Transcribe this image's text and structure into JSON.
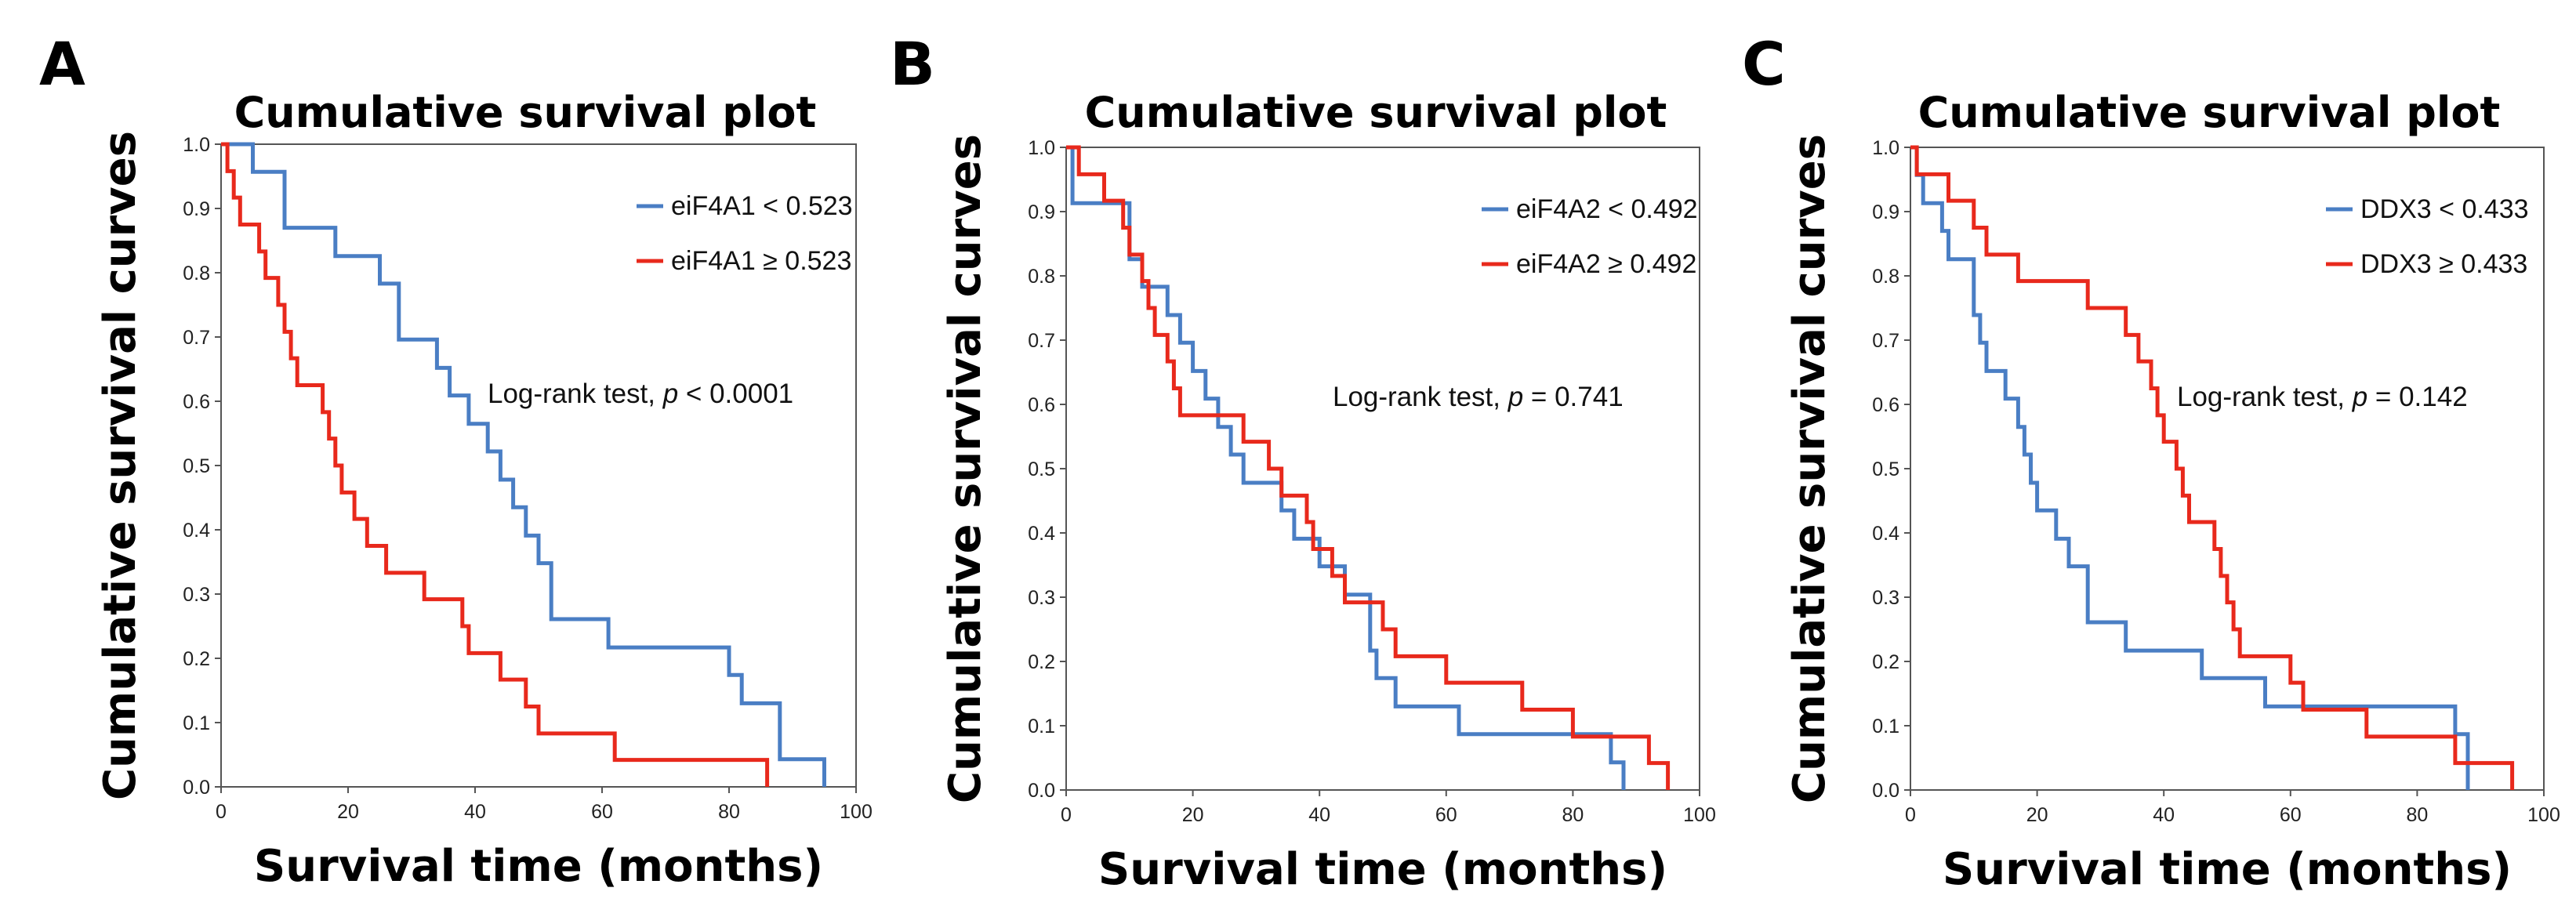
{
  "chart_data": [
    {
      "type": "line",
      "panel": "A",
      "title": "Cumulative survival plot",
      "xlabel": "Survival time (months)",
      "ylabel": "Cumulative survival curves",
      "xlim": [
        0,
        100
      ],
      "ylim": [
        0,
        1
      ],
      "xticks": [
        "0",
        "20",
        "40",
        "60",
        "80",
        "100"
      ],
      "yticks": [
        "0.0",
        "0.1",
        "0.2",
        "0.3",
        "0.4",
        "0.5",
        "0.6",
        "0.7",
        "0.8",
        "0.9",
        "1.0"
      ],
      "grid": false,
      "legend_position": "top-right",
      "annotation": {
        "prefix": "Log-rank test, ",
        "italic": "p",
        "suffix": " < 0.0001"
      },
      "series": [
        {
          "name": "eiF4A1 < 0.523",
          "color": "#4a7ec4",
          "steps": [
            [
              0,
              1.0
            ],
            [
              5,
              0.957
            ],
            [
              10,
              0.87
            ],
            [
              18,
              0.826
            ],
            [
              25,
              0.783
            ],
            [
              28,
              0.696
            ],
            [
              34,
              0.652
            ],
            [
              36,
              0.609
            ],
            [
              39,
              0.565
            ],
            [
              42,
              0.522
            ],
            [
              44,
              0.478
            ],
            [
              46,
              0.435
            ],
            [
              48,
              0.391
            ],
            [
              50,
              0.348
            ],
            [
              52,
              0.261
            ],
            [
              61,
              0.217
            ],
            [
              72,
              0.217
            ],
            [
              80,
              0.174
            ],
            [
              82,
              0.13
            ],
            [
              88,
              0.043
            ],
            [
              95,
              0.0
            ]
          ]
        },
        {
          "name": "eiF4A1 ≥ 0.523",
          "color": "#e8291c",
          "steps": [
            [
              0,
              1.0
            ],
            [
              1,
              0.958
            ],
            [
              2,
              0.917
            ],
            [
              3,
              0.875
            ],
            [
              6,
              0.833
            ],
            [
              7,
              0.792
            ],
            [
              9,
              0.75
            ],
            [
              10,
              0.708
            ],
            [
              11,
              0.667
            ],
            [
              12,
              0.625
            ],
            [
              16,
              0.583
            ],
            [
              17,
              0.542
            ],
            [
              18,
              0.5
            ],
            [
              19,
              0.458
            ],
            [
              21,
              0.417
            ],
            [
              23,
              0.375
            ],
            [
              26,
              0.333
            ],
            [
              32,
              0.292
            ],
            [
              38,
              0.25
            ],
            [
              39,
              0.208
            ],
            [
              44,
              0.167
            ],
            [
              48,
              0.125
            ],
            [
              50,
              0.083
            ],
            [
              62,
              0.042
            ],
            [
              86,
              0.0
            ]
          ]
        }
      ]
    },
    {
      "type": "line",
      "panel": "B",
      "title": "Cumulative survival plot",
      "xlabel": "Survival time (months)",
      "ylabel": "Cumulative survival curves",
      "xlim": [
        0,
        100
      ],
      "ylim": [
        0,
        1
      ],
      "xticks": [
        "0",
        "20",
        "40",
        "60",
        "80",
        "100"
      ],
      "yticks": [
        "0.0",
        "0.1",
        "0.2",
        "0.3",
        "0.4",
        "0.5",
        "0.6",
        "0.7",
        "0.8",
        "0.9",
        "1.0"
      ],
      "grid": false,
      "legend_position": "top-right",
      "annotation": {
        "prefix": "Log-rank test, ",
        "italic": "p",
        "suffix": " = 0.741"
      },
      "series": [
        {
          "name": "eiF4A2 < 0.492",
          "color": "#4a7ec4",
          "steps": [
            [
              0,
              1.0
            ],
            [
              1,
              0.913
            ],
            [
              10,
              0.826
            ],
            [
              12,
              0.783
            ],
            [
              16,
              0.739
            ],
            [
              18,
              0.696
            ],
            [
              20,
              0.652
            ],
            [
              22,
              0.609
            ],
            [
              24,
              0.565
            ],
            [
              26,
              0.522
            ],
            [
              28,
              0.478
            ],
            [
              34,
              0.435
            ],
            [
              36,
              0.391
            ],
            [
              40,
              0.348
            ],
            [
              44,
              0.304
            ],
            [
              48,
              0.217
            ],
            [
              49,
              0.174
            ],
            [
              52,
              0.13
            ],
            [
              62,
              0.087
            ],
            [
              86,
              0.043
            ],
            [
              88,
              0.0
            ]
          ]
        },
        {
          "name": "eiF4A2 ≥ 0.492",
          "color": "#e8291c",
          "steps": [
            [
              0,
              1.0
            ],
            [
              2,
              0.958
            ],
            [
              6,
              0.917
            ],
            [
              9,
              0.875
            ],
            [
              10,
              0.833
            ],
            [
              12,
              0.792
            ],
            [
              13,
              0.75
            ],
            [
              14,
              0.708
            ],
            [
              16,
              0.667
            ],
            [
              17,
              0.625
            ],
            [
              18,
              0.583
            ],
            [
              28,
              0.542
            ],
            [
              32,
              0.5
            ],
            [
              34,
              0.458
            ],
            [
              38,
              0.417
            ],
            [
              39,
              0.375
            ],
            [
              42,
              0.333
            ],
            [
              44,
              0.292
            ],
            [
              50,
              0.25
            ],
            [
              52,
              0.208
            ],
            [
              60,
              0.167
            ],
            [
              72,
              0.125
            ],
            [
              80,
              0.083
            ],
            [
              92,
              0.042
            ],
            [
              95,
              0.0
            ]
          ]
        }
      ]
    },
    {
      "type": "line",
      "panel": "C",
      "title": "Cumulative survival plot",
      "xlabel": "Survival time (months)",
      "ylabel": "Cumulative survival curves",
      "xlim": [
        0,
        100
      ],
      "ylim": [
        0,
        1
      ],
      "xticks": [
        "0",
        "20",
        "40",
        "60",
        "80",
        "100"
      ],
      "yticks": [
        "0.0",
        "0.1",
        "0.2",
        "0.3",
        "0.4",
        "0.5",
        "0.6",
        "0.7",
        "0.8",
        "0.9",
        "1.0"
      ],
      "grid": false,
      "legend_position": "top-right",
      "annotation": {
        "prefix": "Log-rank test, ",
        "italic": "p",
        "suffix": " = 0.142"
      },
      "series": [
        {
          "name": "DDX3 < 0.433",
          "color": "#4a7ec4",
          "steps": [
            [
              0,
              1.0
            ],
            [
              1,
              0.957
            ],
            [
              2,
              0.913
            ],
            [
              5,
              0.87
            ],
            [
              6,
              0.826
            ],
            [
              10,
              0.739
            ],
            [
              11,
              0.696
            ],
            [
              12,
              0.652
            ],
            [
              15,
              0.609
            ],
            [
              17,
              0.565
            ],
            [
              18,
              0.522
            ],
            [
              19,
              0.478
            ],
            [
              20,
              0.435
            ],
            [
              23,
              0.391
            ],
            [
              25,
              0.348
            ],
            [
              28,
              0.261
            ],
            [
              34,
              0.217
            ],
            [
              46,
              0.174
            ],
            [
              56,
              0.13
            ],
            [
              86,
              0.087
            ],
            [
              88,
              0.0
            ]
          ]
        },
        {
          "name": "DDX3 ≥ 0.433",
          "color": "#e8291c",
          "steps": [
            [
              0,
              1.0
            ],
            [
              1,
              0.958
            ],
            [
              6,
              0.917
            ],
            [
              10,
              0.875
            ],
            [
              12,
              0.833
            ],
            [
              17,
              0.792
            ],
            [
              28,
              0.75
            ],
            [
              34,
              0.708
            ],
            [
              36,
              0.667
            ],
            [
              38,
              0.625
            ],
            [
              39,
              0.583
            ],
            [
              40,
              0.542
            ],
            [
              42,
              0.5
            ],
            [
              43,
              0.458
            ],
            [
              44,
              0.417
            ],
            [
              48,
              0.375
            ],
            [
              49,
              0.333
            ],
            [
              50,
              0.292
            ],
            [
              51,
              0.25
            ],
            [
              52,
              0.208
            ],
            [
              60,
              0.167
            ],
            [
              62,
              0.125
            ],
            [
              72,
              0.083
            ],
            [
              80,
              0.083
            ],
            [
              86,
              0.042
            ],
            [
              95,
              0.0
            ]
          ]
        }
      ]
    }
  ]
}
